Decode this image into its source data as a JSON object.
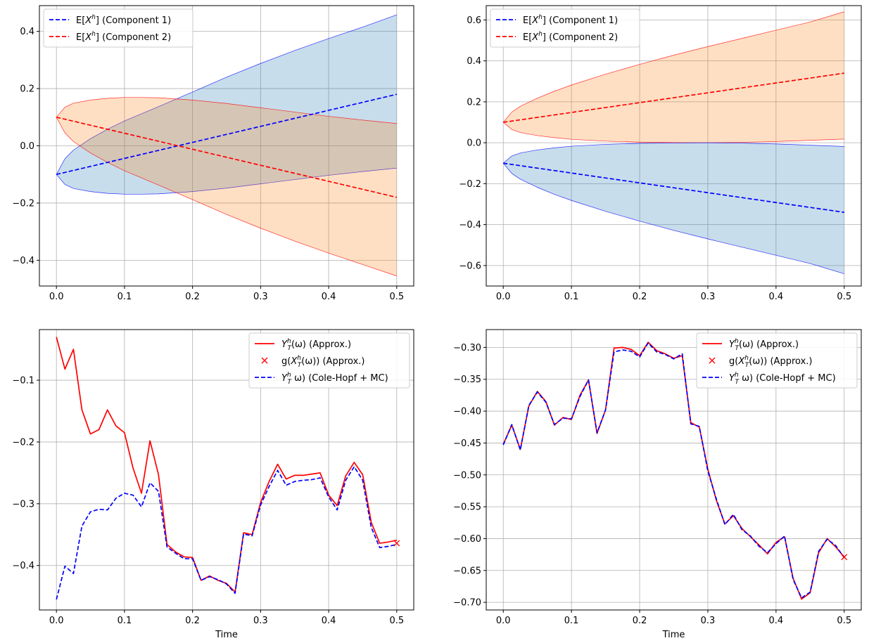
{
  "chart_data": [
    {
      "type": "line",
      "xlabel": "",
      "xlim": [
        -0.025,
        0.525
      ],
      "ylim": [
        -0.49,
        0.49
      ],
      "xticks": [
        0.0,
        0.1,
        0.2,
        0.3,
        0.4,
        0.5
      ],
      "xtick_labels": [
        "0.0",
        "0.1",
        "0.2",
        "0.3",
        "0.4",
        "0.5"
      ],
      "yticks": [
        -0.4,
        -0.2,
        0.0,
        0.2,
        0.4
      ],
      "ytick_labels": [
        "−0.4",
        "−0.2",
        "0.0",
        "0.2",
        "0.4"
      ],
      "grid": true,
      "legend_position": "upper-left",
      "legend": [
        {
          "label": "E[X^h] (Component 1)",
          "color": "#0000ff",
          "style": "dashed"
        },
        {
          "label": "E[X^h] (Component 2)",
          "color": "#ff0000",
          "style": "dashed"
        }
      ],
      "series": [
        {
          "name": "E[X^h] (Component 1)",
          "x": [
            0.0,
            0.5
          ],
          "values": [
            -0.1,
            0.18
          ],
          "color": "#0000ff",
          "style": "dashed"
        },
        {
          "name": "E[X^h] (Component 2)",
          "x": [
            0.0,
            0.5
          ],
          "values": [
            0.1,
            -0.18
          ],
          "color": "#ff0000",
          "style": "dashed"
        }
      ],
      "bands": [
        {
          "color": "#1f77b4",
          "opacity": 0.25,
          "edge": "#0000ff",
          "x": [
            0,
            0.0125,
            0.025,
            0.05,
            0.075,
            0.1,
            0.125,
            0.15,
            0.2,
            0.25,
            0.3,
            0.35,
            0.4,
            0.45,
            0.5
          ],
          "upper": [
            -0.1,
            -0.045,
            -0.015,
            0.025,
            0.058,
            0.087,
            0.112,
            0.137,
            0.188,
            0.24,
            0.288,
            0.333,
            0.375,
            0.415,
            0.458
          ],
          "lower": [
            -0.1,
            -0.135,
            -0.149,
            -0.16,
            -0.166,
            -0.169,
            -0.169,
            -0.168,
            -0.16,
            -0.148,
            -0.133,
            -0.118,
            -0.103,
            -0.09,
            -0.078
          ]
        },
        {
          "color": "#ff7f0e",
          "opacity": 0.25,
          "edge": "#ff0000",
          "x": [
            0,
            0.0125,
            0.025,
            0.05,
            0.075,
            0.1,
            0.125,
            0.15,
            0.2,
            0.25,
            0.3,
            0.35,
            0.4,
            0.45,
            0.5
          ],
          "upper": [
            0.1,
            0.135,
            0.149,
            0.16,
            0.166,
            0.169,
            0.169,
            0.168,
            0.16,
            0.148,
            0.133,
            0.118,
            0.103,
            0.09,
            0.078
          ],
          "lower": [
            0.1,
            0.045,
            0.015,
            -0.025,
            -0.058,
            -0.087,
            -0.112,
            -0.137,
            -0.188,
            -0.24,
            -0.288,
            -0.333,
            -0.375,
            -0.415,
            -0.455
          ]
        }
      ]
    },
    {
      "type": "line",
      "xlabel": "",
      "xlim": [
        -0.025,
        0.525
      ],
      "ylim": [
        -0.7,
        0.67
      ],
      "xticks": [
        0.0,
        0.1,
        0.2,
        0.3,
        0.4,
        0.5
      ],
      "xtick_labels": [
        "0.0",
        "0.1",
        "0.2",
        "0.3",
        "0.4",
        "0.5"
      ],
      "yticks": [
        -0.6,
        -0.4,
        -0.2,
        0.0,
        0.2,
        0.4,
        0.6
      ],
      "ytick_labels": [
        "−0.6",
        "−0.4",
        "−0.2",
        "0.0",
        "0.2",
        "0.4",
        "0.6"
      ],
      "grid": true,
      "legend_position": "upper-left",
      "legend": [
        {
          "label": "E[X^h] (Component 1)",
          "color": "#0000ff",
          "style": "dashed"
        },
        {
          "label": "E[X^h] (Component 2)",
          "color": "#ff0000",
          "style": "dashed"
        }
      ],
      "series": [
        {
          "name": "E[X^h] (Component 1)",
          "x": [
            0.0,
            0.5
          ],
          "values": [
            -0.1,
            -0.34
          ],
          "color": "#0000ff",
          "style": "dashed"
        },
        {
          "name": "E[X^h] (Component 2)",
          "x": [
            0.0,
            0.5
          ],
          "values": [
            0.1,
            0.34
          ],
          "color": "#ff0000",
          "style": "dashed"
        }
      ],
      "bands": [
        {
          "color": "#ff7f0e",
          "opacity": 0.25,
          "edge": "#ff0000",
          "x": [
            0,
            0.0125,
            0.025,
            0.05,
            0.075,
            0.1,
            0.15,
            0.2,
            0.25,
            0.3,
            0.35,
            0.4,
            0.45,
            0.5
          ],
          "upper": [
            0.1,
            0.15,
            0.178,
            0.218,
            0.252,
            0.282,
            0.335,
            0.383,
            0.428,
            0.47,
            0.51,
            0.55,
            0.59,
            0.64
          ],
          "lower": [
            0.1,
            0.065,
            0.05,
            0.035,
            0.025,
            0.017,
            0.008,
            0.003,
            0.001,
            0.0,
            0.002,
            0.006,
            0.012,
            0.018
          ]
        },
        {
          "color": "#1f77b4",
          "opacity": 0.25,
          "edge": "#0000ff",
          "x": [
            0,
            0.0125,
            0.025,
            0.05,
            0.075,
            0.1,
            0.15,
            0.2,
            0.25,
            0.3,
            0.35,
            0.4,
            0.45,
            0.5
          ],
          "upper": [
            -0.1,
            -0.065,
            -0.05,
            -0.035,
            -0.025,
            -0.017,
            -0.008,
            -0.003,
            -0.001,
            0.0,
            -0.002,
            -0.006,
            -0.012,
            -0.018
          ],
          "lower": [
            -0.1,
            -0.15,
            -0.178,
            -0.218,
            -0.252,
            -0.282,
            -0.335,
            -0.383,
            -0.428,
            -0.47,
            -0.51,
            -0.55,
            -0.59,
            -0.64
          ]
        }
      ]
    },
    {
      "type": "line",
      "xlabel": "Time",
      "xlim": [
        -0.025,
        0.525
      ],
      "ylim": [
        -0.472,
        -0.018
      ],
      "xticks": [
        0.0,
        0.1,
        0.2,
        0.3,
        0.4,
        0.5
      ],
      "xtick_labels": [
        "0.0",
        "0.1",
        "0.2",
        "0.3",
        "0.4",
        "0.5"
      ],
      "yticks": [
        -0.4,
        -0.3,
        -0.2,
        -0.1
      ],
      "ytick_labels": [
        "−0.4",
        "−0.3",
        "−0.2",
        "−0.1"
      ],
      "grid": true,
      "legend_position": "upper-right",
      "legend": [
        {
          "label": "Y_T^h(ω) (Approx.)",
          "color": "#ff0000",
          "style": "solid"
        },
        {
          "label": "g(X_T^h(ω)) (Approx.)",
          "color": "#ff0000",
          "style": "x-marker"
        },
        {
          "label": "Y_T^h ω) (Cole-Hopf + MC)",
          "color": "#0000ff",
          "style": "dashed"
        }
      ],
      "series": [
        {
          "name": "Y_T^h(ω) (Approx.)",
          "color": "#ff0000",
          "style": "solid",
          "x": [
            0.0,
            0.0125,
            0.025,
            0.0375,
            0.05,
            0.0625,
            0.075,
            0.0875,
            0.1,
            0.1125,
            0.125,
            0.1375,
            0.15,
            0.1625,
            0.175,
            0.1875,
            0.2,
            0.2125,
            0.225,
            0.2375,
            0.25,
            0.2625,
            0.275,
            0.2875,
            0.3,
            0.3125,
            0.325,
            0.3375,
            0.35,
            0.3625,
            0.375,
            0.3875,
            0.4,
            0.4125,
            0.425,
            0.4375,
            0.45,
            0.4625,
            0.475,
            0.4875,
            0.5
          ],
          "values": [
            -0.03,
            -0.082,
            -0.05,
            -0.148,
            -0.187,
            -0.18,
            -0.148,
            -0.174,
            -0.185,
            -0.242,
            -0.283,
            -0.198,
            -0.253,
            -0.366,
            -0.378,
            -0.386,
            -0.387,
            -0.424,
            -0.417,
            -0.424,
            -0.429,
            -0.443,
            -0.347,
            -0.35,
            -0.298,
            -0.264,
            -0.236,
            -0.26,
            -0.254,
            -0.254,
            -0.252,
            -0.25,
            -0.286,
            -0.303,
            -0.255,
            -0.233,
            -0.253,
            -0.33,
            -0.364,
            -0.362,
            -0.359
          ]
        },
        {
          "name": "Y_T^h ω) (Cole-Hopf + MC)",
          "color": "#0000ff",
          "style": "dashed",
          "x": [
            0.0,
            0.0125,
            0.025,
            0.0375,
            0.05,
            0.0625,
            0.075,
            0.0875,
            0.1,
            0.1125,
            0.125,
            0.1375,
            0.15,
            0.1625,
            0.175,
            0.1875,
            0.2,
            0.2125,
            0.225,
            0.2375,
            0.25,
            0.2625,
            0.275,
            0.2875,
            0.3,
            0.3125,
            0.325,
            0.3375,
            0.35,
            0.3625,
            0.375,
            0.3875,
            0.4,
            0.4125,
            0.425,
            0.4375,
            0.45,
            0.4625,
            0.475,
            0.4875,
            0.5
          ],
          "values": [
            -0.455,
            -0.401,
            -0.413,
            -0.336,
            -0.313,
            -0.309,
            -0.31,
            -0.291,
            -0.283,
            -0.286,
            -0.305,
            -0.266,
            -0.28,
            -0.37,
            -0.38,
            -0.389,
            -0.389,
            -0.424,
            -0.418,
            -0.423,
            -0.43,
            -0.445,
            -0.349,
            -0.352,
            -0.302,
            -0.272,
            -0.246,
            -0.27,
            -0.264,
            -0.262,
            -0.261,
            -0.258,
            -0.289,
            -0.31,
            -0.262,
            -0.24,
            -0.262,
            -0.338,
            -0.371,
            -0.369,
            -0.366
          ]
        }
      ],
      "markers": [
        {
          "name": "g(X_T^h(ω)) (Approx.)",
          "x": 0.5,
          "y": -0.364,
          "color": "#ff0000",
          "marker": "x"
        }
      ]
    },
    {
      "type": "line",
      "xlabel": "Time",
      "xlim": [
        -0.025,
        0.525
      ],
      "ylim": [
        -0.712,
        -0.272
      ],
      "xticks": [
        0.0,
        0.1,
        0.2,
        0.3,
        0.4,
        0.5
      ],
      "xtick_labels": [
        "0.0",
        "0.1",
        "0.2",
        "0.3",
        "0.4",
        "0.5"
      ],
      "yticks": [
        -0.7,
        -0.65,
        -0.6,
        -0.55,
        -0.5,
        -0.45,
        -0.4,
        -0.35,
        -0.3
      ],
      "ytick_labels": [
        "−0.70",
        "−0.65",
        "−0.60",
        "−0.55",
        "−0.50",
        "−0.45",
        "−0.40",
        "−0.35",
        "−0.30"
      ],
      "grid": true,
      "legend_position": "upper-right",
      "legend": [
        {
          "label": "Y_T^h(ω) (Approx.)",
          "color": "#ff0000",
          "style": "solid"
        },
        {
          "label": "g(X_T^h(ω)) (Approx.)",
          "color": "#ff0000",
          "style": "x-marker"
        },
        {
          "label": "Y_T^h ω) (Cole-Hopf + MC)",
          "color": "#0000ff",
          "style": "dashed"
        }
      ],
      "series": [
        {
          "name": "Y_T^h(ω) (Approx.)",
          "color": "#ff0000",
          "style": "solid",
          "x": [
            0.0,
            0.0125,
            0.025,
            0.0375,
            0.05,
            0.0625,
            0.075,
            0.0875,
            0.1,
            0.1125,
            0.125,
            0.1375,
            0.15,
            0.1625,
            0.175,
            0.1875,
            0.2,
            0.2125,
            0.225,
            0.2375,
            0.25,
            0.2625,
            0.275,
            0.2875,
            0.3,
            0.3125,
            0.325,
            0.3375,
            0.35,
            0.3625,
            0.375,
            0.3875,
            0.4,
            0.4125,
            0.425,
            0.4375,
            0.45,
            0.4625,
            0.475,
            0.4875,
            0.5
          ],
          "values": [
            -0.452,
            -0.422,
            -0.46,
            -0.392,
            -0.369,
            -0.385,
            -0.422,
            -0.41,
            -0.413,
            -0.375,
            -0.351,
            -0.435,
            -0.398,
            -0.301,
            -0.3,
            -0.303,
            -0.313,
            -0.292,
            -0.305,
            -0.31,
            -0.317,
            -0.313,
            -0.418,
            -0.425,
            -0.491,
            -0.54,
            -0.577,
            -0.564,
            -0.584,
            -0.597,
            -0.61,
            -0.624,
            -0.606,
            -0.597,
            -0.662,
            -0.695,
            -0.685,
            -0.622,
            -0.6,
            -0.613,
            -0.629
          ]
        },
        {
          "name": "Y_T^h ω) (Cole-Hopf + MC)",
          "color": "#0000ff",
          "style": "dashed",
          "x": [
            0.0,
            0.0125,
            0.025,
            0.0375,
            0.05,
            0.0625,
            0.075,
            0.0875,
            0.1,
            0.1125,
            0.125,
            0.1375,
            0.15,
            0.1625,
            0.175,
            0.1875,
            0.2,
            0.2125,
            0.225,
            0.2375,
            0.25,
            0.2625,
            0.275,
            0.2875,
            0.3,
            0.3125,
            0.325,
            0.3375,
            0.35,
            0.3625,
            0.375,
            0.3875,
            0.4,
            0.4125,
            0.425,
            0.4375,
            0.45,
            0.4625,
            0.475,
            0.4875,
            0.5
          ],
          "values": [
            -0.453,
            -0.421,
            -0.461,
            -0.391,
            -0.37,
            -0.386,
            -0.421,
            -0.411,
            -0.412,
            -0.377,
            -0.351,
            -0.434,
            -0.398,
            -0.307,
            -0.304,
            -0.306,
            -0.315,
            -0.293,
            -0.307,
            -0.311,
            -0.318,
            -0.31,
            -0.42,
            -0.424,
            -0.494,
            -0.538,
            -0.578,
            -0.562,
            -0.586,
            -0.596,
            -0.612,
            -0.622,
            -0.608,
            -0.596,
            -0.664,
            -0.693,
            -0.684,
            -0.62,
            -0.601,
            -0.611,
            -0.63
          ]
        }
      ],
      "markers": [
        {
          "name": "g(X_T^h(ω)) (Approx.)",
          "x": 0.5,
          "y": -0.629,
          "color": "#ff0000",
          "marker": "x"
        }
      ]
    }
  ]
}
